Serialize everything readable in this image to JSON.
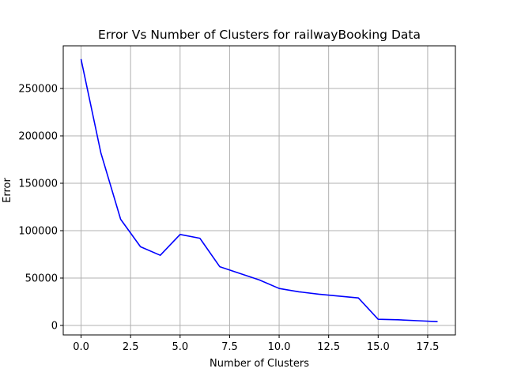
{
  "chart_data": {
    "type": "line",
    "title": "Error Vs Number of Clusters for railwayBooking Data",
    "xlabel": "Number of Clusters",
    "ylabel": "Error",
    "xlim": [
      -0.9,
      18.9
    ],
    "ylim": [
      -10000,
      295000
    ],
    "grid": true,
    "x_ticks": [
      0,
      2.5,
      5,
      7.5,
      10,
      12.5,
      15,
      17.5
    ],
    "x_tick_labels": [
      "0.0",
      "2.5",
      "5.0",
      "7.5",
      "10.0",
      "12.5",
      "15.0",
      "17.5"
    ],
    "y_ticks": [
      0,
      50000,
      100000,
      150000,
      200000,
      250000
    ],
    "y_tick_labels": [
      "0",
      "50000",
      "100000",
      "150000",
      "200000",
      "250000"
    ],
    "series": [
      {
        "color": "#0000ff",
        "x": [
          0,
          1,
          2,
          3,
          4,
          5,
          6,
          7,
          8,
          9,
          10,
          11,
          12,
          13,
          14,
          15,
          16,
          17,
          18
        ],
        "values": [
          281000,
          182000,
          112000,
          83000,
          74000,
          96000,
          92000,
          62000,
          55000,
          48000,
          39000,
          35500,
          33000,
          31000,
          29000,
          6500,
          6000,
          5000,
          4000
        ]
      }
    ]
  }
}
